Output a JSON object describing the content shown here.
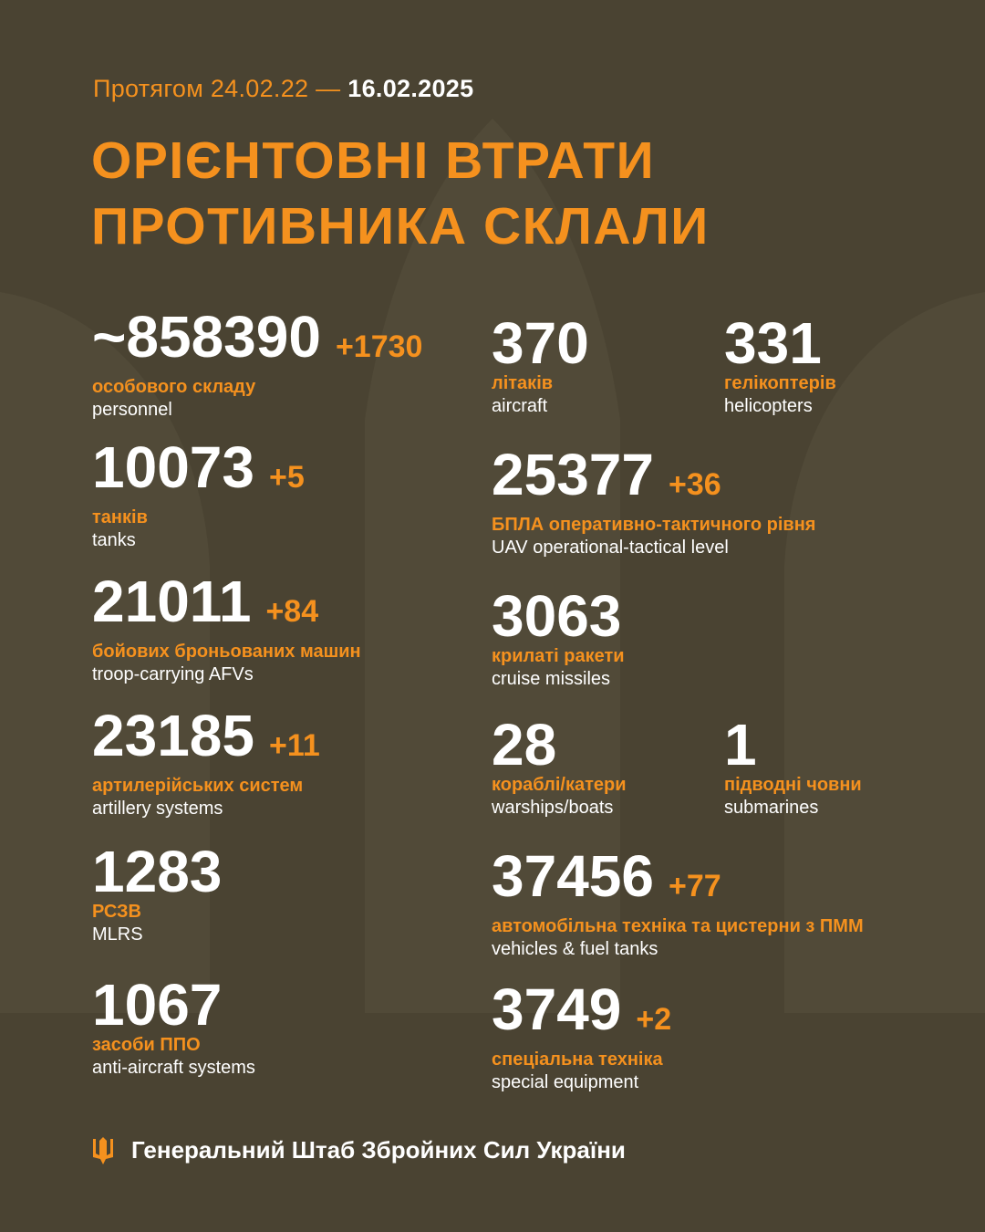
{
  "header": {
    "period_prefix": "Протягом 24.02.22 —",
    "period_end": "16.02.2025",
    "title_line1": "ОРІЄНТОВНІ ВТРАТИ",
    "title_line2": "ПРОТИВНИКА СКЛАЛИ"
  },
  "colors": {
    "background": "#4a4332",
    "accent": "#f5911e",
    "text": "#ffffff"
  },
  "stats": [
    {
      "value": "~858390",
      "delta": "+1730",
      "ua": "особового складу",
      "en": "personnel"
    },
    {
      "value": "10073",
      "delta": "+5",
      "ua": "танків",
      "en": "tanks"
    },
    {
      "value": "21011",
      "delta": "+84",
      "ua": "бойових броньованих машин",
      "en": "troop-carrying AFVs"
    },
    {
      "value": "23185",
      "delta": "+11",
      "ua": "артилерійських систем",
      "en": "artillery systems"
    },
    {
      "value": "1283",
      "delta": "",
      "ua": "РСЗВ",
      "en": "MLRS"
    },
    {
      "value": "1067",
      "delta": "",
      "ua": "засоби ППО",
      "en": "anti-aircraft systems"
    },
    {
      "value": "370",
      "delta": "",
      "ua": "літаків",
      "en": "aircraft"
    },
    {
      "value": "331",
      "delta": "",
      "ua": "гелікоптерів",
      "en": "helicopters"
    },
    {
      "value": "25377",
      "delta": "+36",
      "ua": "БПЛА оперативно-тактичного рівня",
      "en": "UAV operational-tactical level"
    },
    {
      "value": "3063",
      "delta": "",
      "ua": "крилаті ракети",
      "en": "cruise missiles"
    },
    {
      "value": "28",
      "delta": "",
      "ua": "кораблі/катери",
      "en": "warships/boats"
    },
    {
      "value": "1",
      "delta": "",
      "ua": "підводні човни",
      "en": "submarines"
    },
    {
      "value": "37456",
      "delta": "+77",
      "ua": "автомобільна техніка та цистерни з ПММ",
      "en": "vehicles & fuel tanks"
    },
    {
      "value": "3749",
      "delta": "+2",
      "ua": "спеціальна техніка",
      "en": "special equipment"
    }
  ],
  "footer": {
    "icon": "trident-icon",
    "text": "Генеральний Штаб Збройних Сил України"
  }
}
